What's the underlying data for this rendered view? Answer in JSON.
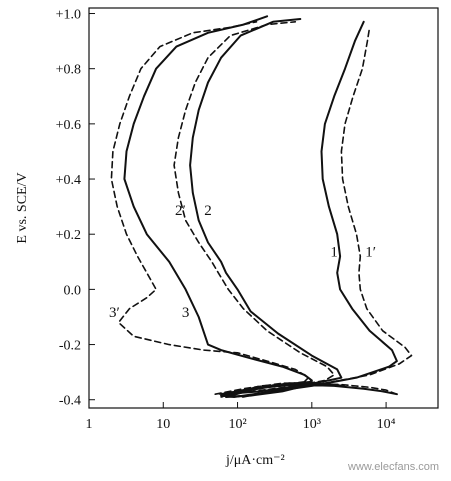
{
  "chart_data": {
    "type": "line",
    "title": "",
    "xlabel": "j/μA·cm⁻²",
    "ylabel": "E vs. SCE/V",
    "x_scale": "log",
    "xlim": [
      1,
      50000
    ],
    "ylim": [
      -0.43,
      1.02
    ],
    "grid": false,
    "x_ticks": [
      {
        "value": 1,
        "label": "1"
      },
      {
        "value": 10,
        "label": "10"
      },
      {
        "value": 100,
        "label": "10²"
      },
      {
        "value": 1000,
        "label": "10³"
      },
      {
        "value": 10000,
        "label": "10⁴"
      }
    ],
    "y_ticks": [
      {
        "value": 1.0,
        "label": "+1.0"
      },
      {
        "value": 0.8,
        "label": "+0.8"
      },
      {
        "value": 0.6,
        "label": "+0.6"
      },
      {
        "value": 0.4,
        "label": "+0.4"
      },
      {
        "value": 0.2,
        "label": "+0.2"
      },
      {
        "value": 0.0,
        "label": "0.0"
      },
      {
        "value": -0.2,
        "label": "-0.2"
      },
      {
        "value": -0.4,
        "label": "-0.4"
      }
    ],
    "series": [
      {
        "name": "1",
        "style": "solid",
        "label": "1",
        "label_at": [
          2000,
          0.12
        ],
        "points": [
          [
            14000,
            -0.38
          ],
          [
            9000,
            -0.37
          ],
          [
            5000,
            -0.36
          ],
          [
            2000,
            -0.35
          ],
          [
            600,
            -0.345
          ],
          [
            150,
            -0.36
          ],
          [
            60,
            -0.385
          ],
          [
            90,
            -0.39
          ],
          [
            300,
            -0.37
          ],
          [
            1000,
            -0.35
          ],
          [
            4000,
            -0.32
          ],
          [
            11000,
            -0.28
          ],
          [
            14000,
            -0.26
          ],
          [
            12000,
            -0.22
          ],
          [
            6000,
            -0.15
          ],
          [
            3500,
            -0.07
          ],
          [
            2400,
            0.0
          ],
          [
            2200,
            0.06
          ],
          [
            2400,
            0.12
          ],
          [
            2200,
            0.2
          ],
          [
            1700,
            0.3
          ],
          [
            1400,
            0.4
          ],
          [
            1350,
            0.5
          ],
          [
            1500,
            0.6
          ],
          [
            2000,
            0.7
          ],
          [
            2800,
            0.8
          ],
          [
            3800,
            0.9
          ],
          [
            5000,
            0.97
          ]
        ]
      },
      {
        "name": "1'",
        "style": "dashed",
        "label": "1′",
        "label_at": [
          6200,
          0.12
        ],
        "points": [
          [
            14000,
            -0.38
          ],
          [
            10000,
            -0.365
          ],
          [
            6000,
            -0.355
          ],
          [
            2500,
            -0.345
          ],
          [
            800,
            -0.34
          ],
          [
            200,
            -0.35
          ],
          [
            70,
            -0.385
          ],
          [
            120,
            -0.39
          ],
          [
            400,
            -0.36
          ],
          [
            1500,
            -0.34
          ],
          [
            6000,
            -0.31
          ],
          [
            15000,
            -0.27
          ],
          [
            22000,
            -0.24
          ],
          [
            18000,
            -0.21
          ],
          [
            9000,
            -0.15
          ],
          [
            5500,
            -0.07
          ],
          [
            4500,
            0.0
          ],
          [
            4300,
            0.06
          ],
          [
            4500,
            0.12
          ],
          [
            4000,
            0.2
          ],
          [
            3100,
            0.3
          ],
          [
            2600,
            0.4
          ],
          [
            2500,
            0.5
          ],
          [
            2800,
            0.6
          ],
          [
            3600,
            0.7
          ],
          [
            4800,
            0.8
          ],
          [
            5600,
            0.9
          ],
          [
            6000,
            0.95
          ]
        ]
      },
      {
        "name": "2",
        "style": "solid",
        "label": "2",
        "label_at": [
          40,
          0.27
        ],
        "points": [
          [
            2700,
            -0.35
          ],
          [
            1200,
            -0.34
          ],
          [
            500,
            -0.34
          ],
          [
            150,
            -0.36
          ],
          [
            60,
            -0.38
          ],
          [
            200,
            -0.37
          ],
          [
            700,
            -0.35
          ],
          [
            1700,
            -0.33
          ],
          [
            2500,
            -0.32
          ],
          [
            2200,
            -0.29
          ],
          [
            1000,
            -0.24
          ],
          [
            350,
            -0.16
          ],
          [
            150,
            -0.08
          ],
          [
            100,
            0.0
          ],
          [
            70,
            0.06
          ],
          [
            60,
            0.1
          ],
          [
            40,
            0.17
          ],
          [
            30,
            0.25
          ],
          [
            25,
            0.35
          ],
          [
            23,
            0.45
          ],
          [
            25,
            0.55
          ],
          [
            30,
            0.65
          ],
          [
            40,
            0.75
          ],
          [
            60,
            0.84
          ],
          [
            110,
            0.92
          ],
          [
            300,
            0.97
          ],
          [
            700,
            0.98
          ]
        ]
      },
      {
        "name": "2'",
        "style": "dashed",
        "label": "2′",
        "label_at": [
          17,
          0.27
        ],
        "points": [
          [
            2400,
            -0.35
          ],
          [
            1000,
            -0.34
          ],
          [
            400,
            -0.34
          ],
          [
            120,
            -0.36
          ],
          [
            50,
            -0.38
          ],
          [
            160,
            -0.37
          ],
          [
            600,
            -0.35
          ],
          [
            1500,
            -0.33
          ],
          [
            2000,
            -0.31
          ],
          [
            1600,
            -0.28
          ],
          [
            700,
            -0.23
          ],
          [
            250,
            -0.15
          ],
          [
            120,
            -0.07
          ],
          [
            75,
            0.0
          ],
          [
            55,
            0.06
          ],
          [
            45,
            0.1
          ],
          [
            30,
            0.17
          ],
          [
            20,
            0.25
          ],
          [
            16,
            0.35
          ],
          [
            14,
            0.45
          ],
          [
            16,
            0.55
          ],
          [
            20,
            0.65
          ],
          [
            27,
            0.75
          ],
          [
            40,
            0.84
          ],
          [
            80,
            0.92
          ],
          [
            250,
            0.96
          ],
          [
            600,
            0.97
          ]
        ]
      },
      {
        "name": "3",
        "style": "solid",
        "label": "3",
        "label_at": [
          20,
          -0.1
        ],
        "points": [
          [
            1000,
            -0.335
          ],
          [
            400,
            -0.345
          ],
          [
            150,
            -0.365
          ],
          [
            70,
            -0.39
          ],
          [
            150,
            -0.385
          ],
          [
            400,
            -0.37
          ],
          [
            800,
            -0.35
          ],
          [
            1000,
            -0.33
          ],
          [
            800,
            -0.31
          ],
          [
            400,
            -0.28
          ],
          [
            150,
            -0.25
          ],
          [
            60,
            -0.22
          ],
          [
            40,
            -0.2
          ],
          [
            30,
            -0.1
          ],
          [
            20,
            0.0
          ],
          [
            12,
            0.1
          ],
          [
            6,
            0.2
          ],
          [
            4,
            0.3
          ],
          [
            3,
            0.4
          ],
          [
            3.2,
            0.5
          ],
          [
            4,
            0.6
          ],
          [
            5.5,
            0.7
          ],
          [
            8,
            0.8
          ],
          [
            15,
            0.88
          ],
          [
            40,
            0.93
          ],
          [
            120,
            0.96
          ],
          [
            250,
            0.99
          ]
        ]
      },
      {
        "name": "3'",
        "style": "dashed",
        "label": "3′",
        "label_at": [
          2.2,
          -0.1
        ],
        "points": [
          [
            800,
            -0.335
          ],
          [
            300,
            -0.35
          ],
          [
            110,
            -0.37
          ],
          [
            60,
            -0.39
          ],
          [
            130,
            -0.385
          ],
          [
            350,
            -0.37
          ],
          [
            700,
            -0.35
          ],
          [
            900,
            -0.32
          ],
          [
            600,
            -0.29
          ],
          [
            250,
            -0.26
          ],
          [
            100,
            -0.23
          ],
          [
            35,
            -0.22
          ],
          [
            12,
            -0.2
          ],
          [
            4,
            -0.17
          ],
          [
            2.5,
            -0.12
          ],
          [
            3.5,
            -0.07
          ],
          [
            6,
            -0.03
          ],
          [
            8,
            0.0
          ],
          [
            6,
            0.06
          ],
          [
            4.5,
            0.12
          ],
          [
            3.2,
            0.2
          ],
          [
            2.4,
            0.3
          ],
          [
            2,
            0.4
          ],
          [
            2.1,
            0.5
          ],
          [
            2.6,
            0.6
          ],
          [
            3.5,
            0.7
          ],
          [
            5,
            0.8
          ],
          [
            9,
            0.88
          ],
          [
            25,
            0.93
          ],
          [
            80,
            0.95
          ],
          [
            180,
            0.97
          ]
        ]
      }
    ]
  },
  "watermark": "www.elecfans.com"
}
